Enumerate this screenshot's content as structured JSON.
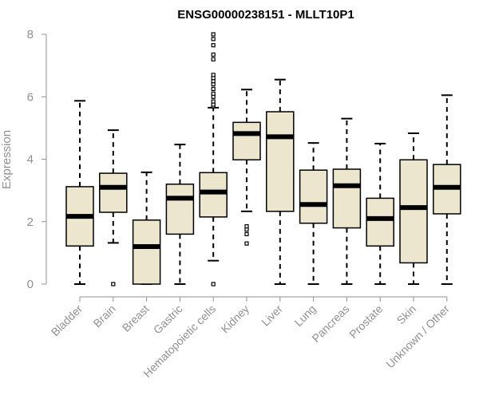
{
  "chart_data": {
    "type": "boxplot",
    "title": "ENSG00000238151 - MLLT10P1",
    "xlabel": "",
    "ylabel": "Expression",
    "ylim": [
      0,
      8
    ],
    "yticks": [
      0,
      2,
      4,
      6,
      8
    ],
    "box_fill": "#ede6cf",
    "categories": [
      "Bladder",
      "Brain",
      "Breast",
      "Gastric",
      "Hematopoietic cells",
      "Kidney",
      "Liver",
      "Lung",
      "Pancreas",
      "Prostate",
      "Skin",
      "Unknown / Other"
    ],
    "boxes": [
      {
        "whisker_low": 0.0,
        "q1": 1.22,
        "median": 2.17,
        "q3": 3.12,
        "whisker_high": 5.87,
        "outliers": []
      },
      {
        "whisker_low": 1.32,
        "q1": 2.3,
        "median": 3.1,
        "q3": 3.55,
        "whisker_high": 4.93,
        "outliers": [
          0.0
        ]
      },
      {
        "whisker_low": 0.0,
        "q1": 0.0,
        "median": 1.2,
        "q3": 2.05,
        "whisker_high": 3.58,
        "outliers": []
      },
      {
        "whisker_low": 0.0,
        "q1": 1.6,
        "median": 2.75,
        "q3": 3.2,
        "whisker_high": 4.47,
        "outliers": []
      },
      {
        "whisker_low": 0.75,
        "q1": 2.15,
        "median": 2.95,
        "q3": 3.57,
        "whisker_high": 5.65,
        "outliers": [
          0.0,
          5.7,
          5.75,
          5.85,
          6.0,
          6.1,
          6.25,
          6.4,
          6.5,
          6.6,
          6.7,
          7.2,
          7.35,
          7.65,
          7.85,
          8.0
        ]
      },
      {
        "whisker_low": 2.33,
        "q1": 3.98,
        "median": 4.82,
        "q3": 5.18,
        "whisker_high": 6.23,
        "outliers": [
          1.3,
          1.6,
          1.75,
          1.85
        ]
      },
      {
        "whisker_low": 0.0,
        "q1": 2.33,
        "median": 4.72,
        "q3": 5.52,
        "whisker_high": 6.55,
        "outliers": []
      },
      {
        "whisker_low": 0.0,
        "q1": 1.95,
        "median": 2.55,
        "q3": 3.65,
        "whisker_high": 4.52,
        "outliers": []
      },
      {
        "whisker_low": 0.0,
        "q1": 1.8,
        "median": 3.15,
        "q3": 3.68,
        "whisker_high": 5.3,
        "outliers": []
      },
      {
        "whisker_low": 0.0,
        "q1": 1.22,
        "median": 2.1,
        "q3": 2.75,
        "whisker_high": 4.5,
        "outliers": []
      },
      {
        "whisker_low": 0.0,
        "q1": 0.68,
        "median": 2.45,
        "q3": 3.98,
        "whisker_high": 4.83,
        "outliers": []
      },
      {
        "whisker_low": 0.0,
        "q1": 2.25,
        "median": 3.1,
        "q3": 3.83,
        "whisker_high": 6.05,
        "outliers": []
      }
    ]
  }
}
